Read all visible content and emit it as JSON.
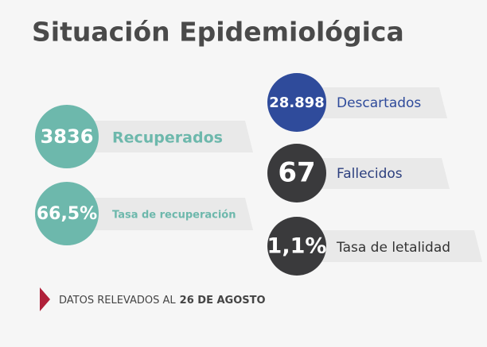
{
  "title": "Situación Epidemiológica",
  "items": [
    {
      "value": "3836",
      "label": "Recuperados"
    },
    {
      "value": "66,5%",
      "label": "Tasa de recuperación"
    },
    {
      "value": "28.898",
      "label": "Descartados"
    },
    {
      "value": "67",
      "label": "Fallecidos"
    },
    {
      "value": "1,1%",
      "label": "Tasa de letalidad"
    }
  ],
  "footer": {
    "prefix": "DATOS RELEVADOS AL",
    "date": "26 DE AGOSTO"
  }
}
